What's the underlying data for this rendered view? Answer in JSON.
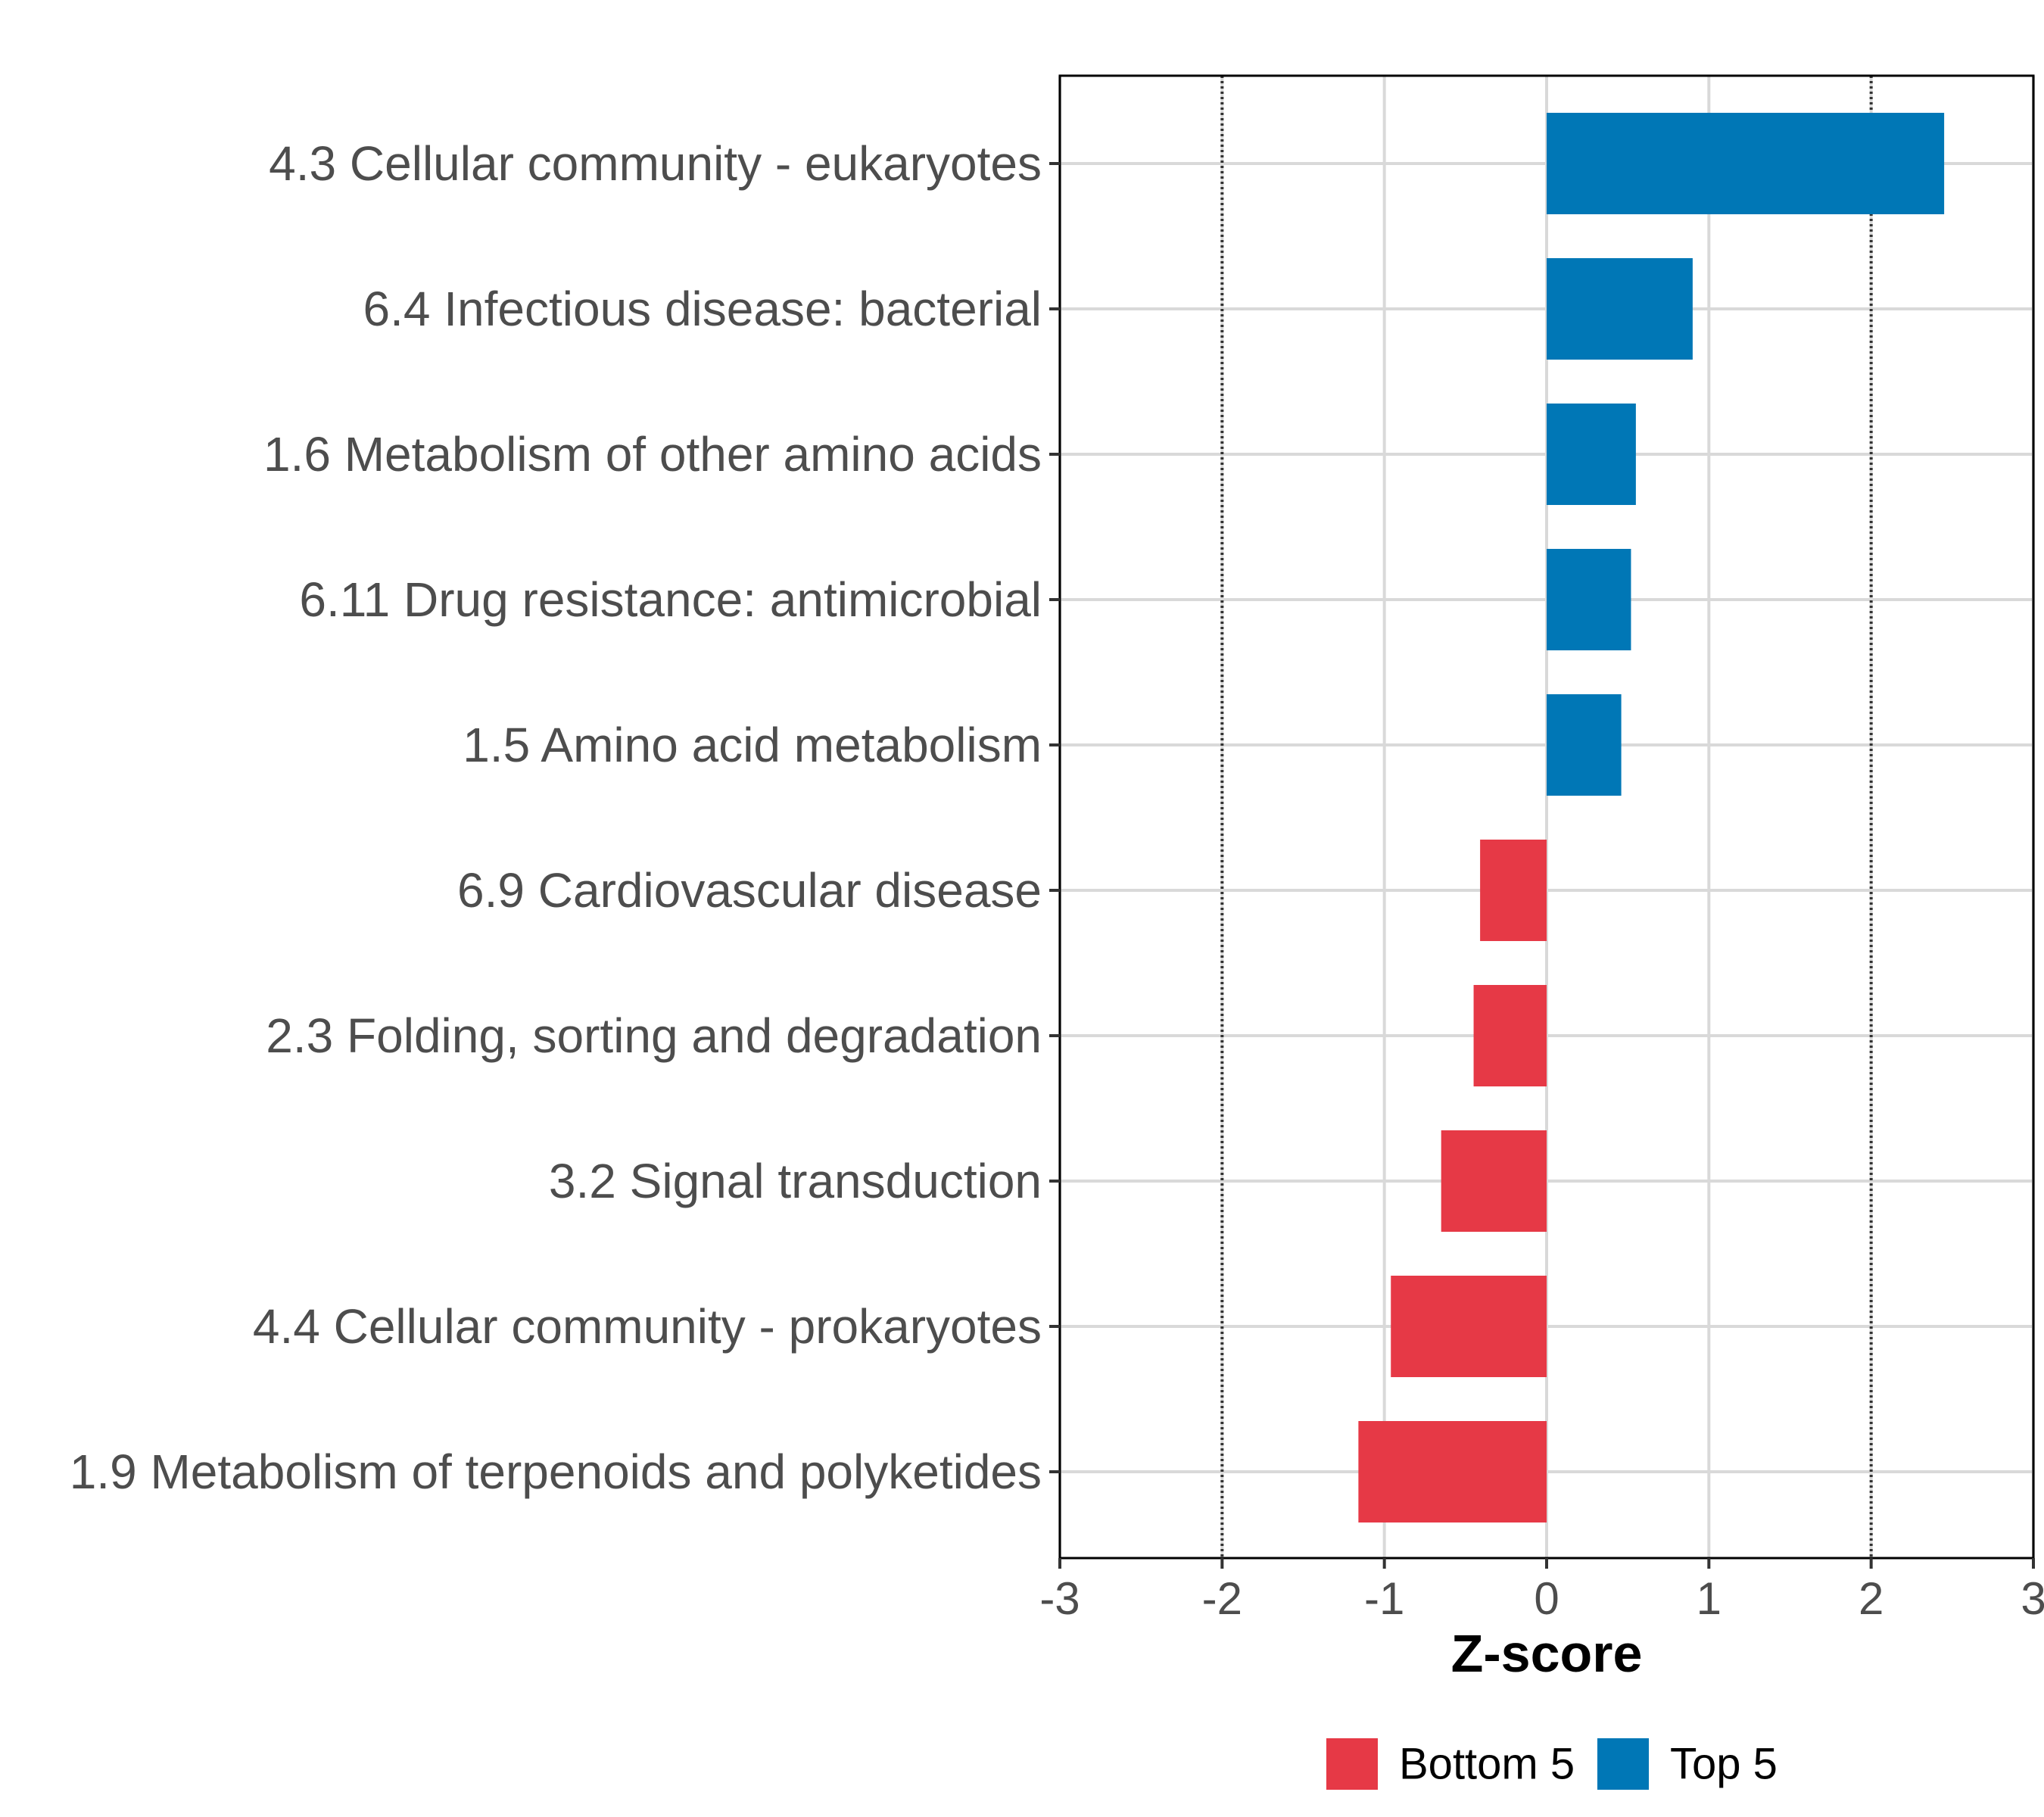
{
  "chart_data": {
    "type": "bar",
    "orientation": "horizontal",
    "title": "",
    "xlabel": "Z-score",
    "ylabel": "",
    "xlim": [
      -3,
      3
    ],
    "x_ticks": [
      "-3",
      "-2",
      "-1",
      "0",
      "1",
      "2",
      "3"
    ],
    "x_tick_values": [
      -3,
      -2,
      -1,
      0,
      1,
      2,
      3
    ],
    "reference_lines": [
      -2,
      2
    ],
    "grid": true,
    "legend_position": "bottom",
    "categories": [
      "4.3 Cellular community - eukaryotes",
      "6.4 Infectious disease: bacterial",
      "1.6 Metabolism of other amino acids",
      "6.11 Drug resistance: antimicrobial",
      "1.5 Amino acid metabolism",
      "6.9 Cardiovascular disease",
      "2.3 Folding, sorting and degradation",
      "3.2 Signal transduction",
      "4.4 Cellular community - prokaryotes",
      "1.9 Metabolism of terpenoids and polyketides"
    ],
    "values": [
      2.45,
      0.9,
      0.55,
      0.52,
      0.46,
      -0.41,
      -0.45,
      -0.65,
      -0.96,
      -1.16
    ],
    "groups": [
      "Top 5",
      "Top 5",
      "Top 5",
      "Top 5",
      "Top 5",
      "Bottom 5",
      "Bottom 5",
      "Bottom 5",
      "Bottom 5",
      "Bottom 5"
    ],
    "legend": [
      {
        "name": "Bottom 5",
        "color": "#e63946"
      },
      {
        "name": "Top 5",
        "color": "#0077b6"
      }
    ]
  }
}
